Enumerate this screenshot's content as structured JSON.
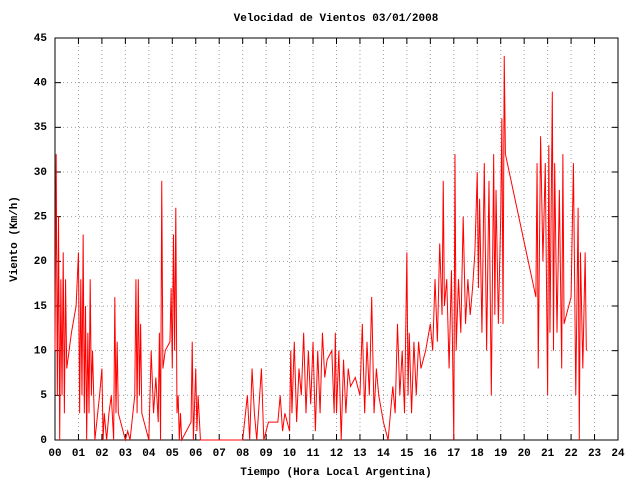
{
  "chart_data": {
    "type": "line",
    "title": "Velocidad de Vientos 03/01/2008",
    "x_label": "Tiempo (Hora Local Argentina)",
    "y_label": "Viento (Km/h)",
    "color": "#ff0000",
    "grid": true,
    "xlim": [
      0,
      24
    ],
    "ylim": [
      0,
      45
    ],
    "xticks": [
      {
        "value": 0,
        "label": "00"
      },
      {
        "value": 1,
        "label": "01"
      },
      {
        "value": 2,
        "label": "02"
      },
      {
        "value": 3,
        "label": "03"
      },
      {
        "value": 4,
        "label": "04"
      },
      {
        "value": 5,
        "label": "05"
      },
      {
        "value": 6,
        "label": "06"
      },
      {
        "value": 7,
        "label": "07"
      },
      {
        "value": 8,
        "label": "08"
      },
      {
        "value": 9,
        "label": "09"
      },
      10,
      11,
      12,
      13,
      14,
      15,
      16,
      17,
      18,
      19,
      20,
      21,
      22,
      23,
      24
    ],
    "yticks": [
      0,
      5,
      10,
      15,
      20,
      25,
      30,
      35,
      40,
      45
    ],
    "x": [
      0,
      0.05,
      0.1,
      0.15,
      0.2,
      0.25,
      0.3,
      0.35,
      0.4,
      0.45,
      0.5,
      0.6,
      0.7,
      0.9,
      1.0,
      1.05,
      1.1,
      1.15,
      1.2,
      1.25,
      1.3,
      1.35,
      1.4,
      1.45,
      1.5,
      1.55,
      1.6,
      1.7,
      1.9,
      2.0,
      2.05,
      2.1,
      2.2,
      2.3,
      2.4,
      2.5,
      2.55,
      2.6,
      2.65,
      2.7,
      3.0,
      3.1,
      3.2,
      3.4,
      3.45,
      3.5,
      3.55,
      3.6,
      3.65,
      3.7,
      4.0,
      4.1,
      4.2,
      4.3,
      4.4,
      4.45,
      4.5,
      4.55,
      4.6,
      4.7,
      4.9,
      4.95,
      5.0,
      5.05,
      5.1,
      5.15,
      5.2,
      5.25,
      5.3,
      5.35,
      5.4,
      5.8,
      5.85,
      5.9,
      6.0,
      6.05,
      6.1,
      6.2,
      6.5,
      7.0,
      8.0,
      8.2,
      8.3,
      8.4,
      8.5,
      8.6,
      8.8,
      8.9,
      9.1,
      9.5,
      9.6,
      9.7,
      9.8,
      10.0,
      10.05,
      10.1,
      10.2,
      10.3,
      10.4,
      10.5,
      10.6,
      10.7,
      10.8,
      10.9,
      11.0,
      11.1,
      11.2,
      11.3,
      11.4,
      11.5,
      11.6,
      11.8,
      11.9,
      11.95,
      12.0,
      12.1,
      12.2,
      12.3,
      12.4,
      12.5,
      12.6,
      12.8,
      13.0,
      13.1,
      13.2,
      13.3,
      13.4,
      13.5,
      13.6,
      13.7,
      13.8,
      14.0,
      14.2,
      14.4,
      14.5,
      14.6,
      14.7,
      14.8,
      14.9,
      15.0,
      15.05,
      15.1,
      15.2,
      15.3,
      15.4,
      15.5,
      15.6,
      15.8,
      16.0,
      16.1,
      16.2,
      16.3,
      16.4,
      16.5,
      16.55,
      16.6,
      16.7,
      16.8,
      16.9,
      17.0,
      17.05,
      17.1,
      17.2,
      17.3,
      17.4,
      17.5,
      17.6,
      17.7,
      17.8,
      17.9,
      18.0,
      18.05,
      18.1,
      18.2,
      18.3,
      18.4,
      18.5,
      18.6,
      18.7,
      18.75,
      18.8,
      18.9,
      19.0,
      19.05,
      19.1,
      19.15,
      19.2,
      20.5,
      20.55,
      20.6,
      20.7,
      20.8,
      20.9,
      21.0,
      21.05,
      21.1,
      21.2,
      21.25,
      21.3,
      21.4,
      21.5,
      21.6,
      21.65,
      21.7,
      22.0,
      22.1,
      22.2,
      22.3,
      22.35,
      22.4,
      22.5,
      22.6,
      22.65
    ],
    "values": [
      10,
      32,
      5,
      25,
      0,
      18,
      5,
      21,
      3,
      18,
      8,
      10,
      12,
      15,
      21,
      3,
      18,
      5,
      23,
      3,
      15,
      0,
      12,
      3,
      18,
      5,
      10,
      0,
      5,
      8,
      0,
      3,
      0,
      3,
      5,
      0,
      16,
      3,
      11,
      3,
      0,
      1,
      0,
      5,
      18,
      3,
      18,
      5,
      13,
      3,
      0,
      10,
      3,
      7,
      2,
      12,
      0,
      29,
      8,
      10,
      11,
      17,
      8,
      23,
      10,
      26,
      3,
      5,
      0,
      3,
      0,
      2,
      11,
      0,
      8,
      1,
      5,
      0,
      0,
      0,
      0,
      5,
      0,
      8,
      3,
      0,
      8,
      0,
      2,
      2,
      5,
      1,
      3,
      1,
      10,
      3,
      11,
      2,
      8,
      5,
      12,
      3,
      10,
      4,
      11,
      1,
      10,
      3,
      12,
      7,
      9,
      10,
      3,
      12,
      3,
      10,
      0,
      9,
      3,
      8,
      6,
      7,
      5,
      13,
      3,
      11,
      5,
      16,
      3,
      8,
      5,
      2,
      0,
      6,
      3,
      13,
      5,
      10,
      3,
      21,
      5,
      12,
      3,
      11,
      5,
      11,
      8,
      10,
      13,
      10,
      18,
      11,
      22,
      14,
      29,
      15,
      18,
      8,
      19,
      0,
      32,
      10,
      18,
      12,
      25,
      13,
      18,
      14,
      17,
      21,
      30,
      17,
      27,
      12,
      31,
      10,
      29,
      5,
      32,
      14,
      28,
      13,
      25,
      36,
      13,
      43,
      32,
      16,
      31,
      8,
      34,
      20,
      31,
      5,
      33,
      12,
      39,
      10,
      31,
      12,
      28,
      8,
      32,
      13,
      16,
      31,
      5,
      26,
      0,
      21,
      8,
      21,
      10
    ]
  }
}
